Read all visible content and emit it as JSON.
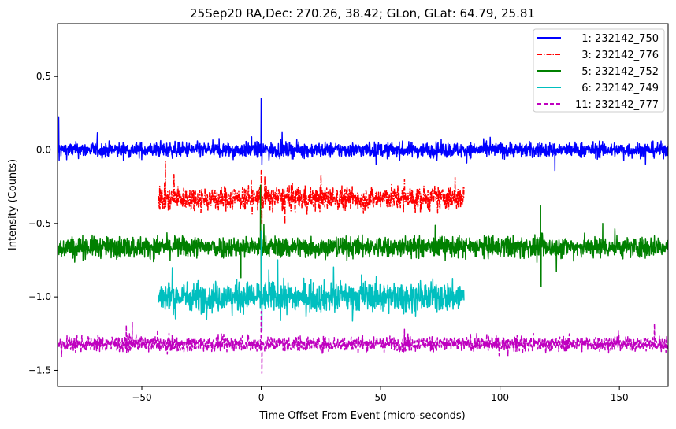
{
  "chart_data": {
    "type": "line",
    "title": "25Sep20 RA,Dec:  270.26,  38.42; GLon, GLat:   64.79,  25.81",
    "xlabel": "Time Offset From Event (micro-seconds)",
    "ylabel": "Intensity (Counts)",
    "xlim": [
      -85.3,
      170.4
    ],
    "ylim": [
      -1.61,
      0.86
    ],
    "xticks": [
      -50,
      0,
      50,
      100,
      150
    ],
    "xtick_labels": [
      "−50",
      "0",
      "50",
      "100",
      "150"
    ],
    "yticks": [
      0.5,
      0.0,
      -0.5,
      -1.0,
      -1.5
    ],
    "ytick_labels": [
      "0.5",
      "0.0",
      "−0.5",
      "−1.0",
      "−1.5"
    ],
    "grid": false,
    "legend_position": "top-right",
    "series": [
      {
        "name": "1: 232142_750",
        "color": "#0000ff",
        "style": "solid",
        "x_range": [
          -85.3,
          170.4
        ],
        "baseline": 0.0,
        "noise": 0.025,
        "spikes": [
          [
            -84.8,
            0.22
          ],
          [
            -84.6,
            -0.07
          ],
          [
            0,
            0.35
          ],
          [
            0.3,
            -0.1
          ],
          [
            123,
            -0.14
          ],
          [
            -4,
            0.09
          ]
        ]
      },
      {
        "name": "3: 232142_776",
        "color": "#ff0000",
        "style": "dashdot",
        "x_range": [
          -43,
          85
        ],
        "baseline": -0.33,
        "noise": 0.04,
        "spikes": [
          [
            0,
            -0.14
          ],
          [
            0.3,
            -0.5
          ],
          [
            60,
            -0.2
          ]
        ]
      },
      {
        "name": "5: 232142_752",
        "color": "#008000",
        "style": "solid",
        "x_range": [
          -85.3,
          170.4
        ],
        "baseline": -0.66,
        "noise": 0.035,
        "spikes": [
          [
            -0.3,
            -0.24
          ],
          [
            0,
            -1.0
          ],
          [
            -8.5,
            -0.87
          ],
          [
            117,
            -0.38
          ],
          [
            117.2,
            -0.93
          ],
          [
            143,
            -0.5
          ]
        ]
      },
      {
        "name": "6: 232142_749",
        "color": "#00bfbf",
        "style": "solid",
        "x_range": [
          -43,
          85
        ],
        "baseline": -1.0,
        "noise": 0.05,
        "spikes": [
          [
            0,
            -0.55
          ],
          [
            0.3,
            -1.23
          ],
          [
            42,
            -0.85
          ]
        ]
      },
      {
        "name": "11: 232142_777",
        "color": "#bf00bf",
        "style": "dashed",
        "x_range": [
          -85.3,
          170.4
        ],
        "baseline": -1.32,
        "noise": 0.025,
        "spikes": [
          [
            -54,
            -1.17
          ],
          [
            0,
            -1.1
          ],
          [
            0.3,
            -1.52
          ],
          [
            60,
            -1.22
          ]
        ]
      }
    ]
  }
}
